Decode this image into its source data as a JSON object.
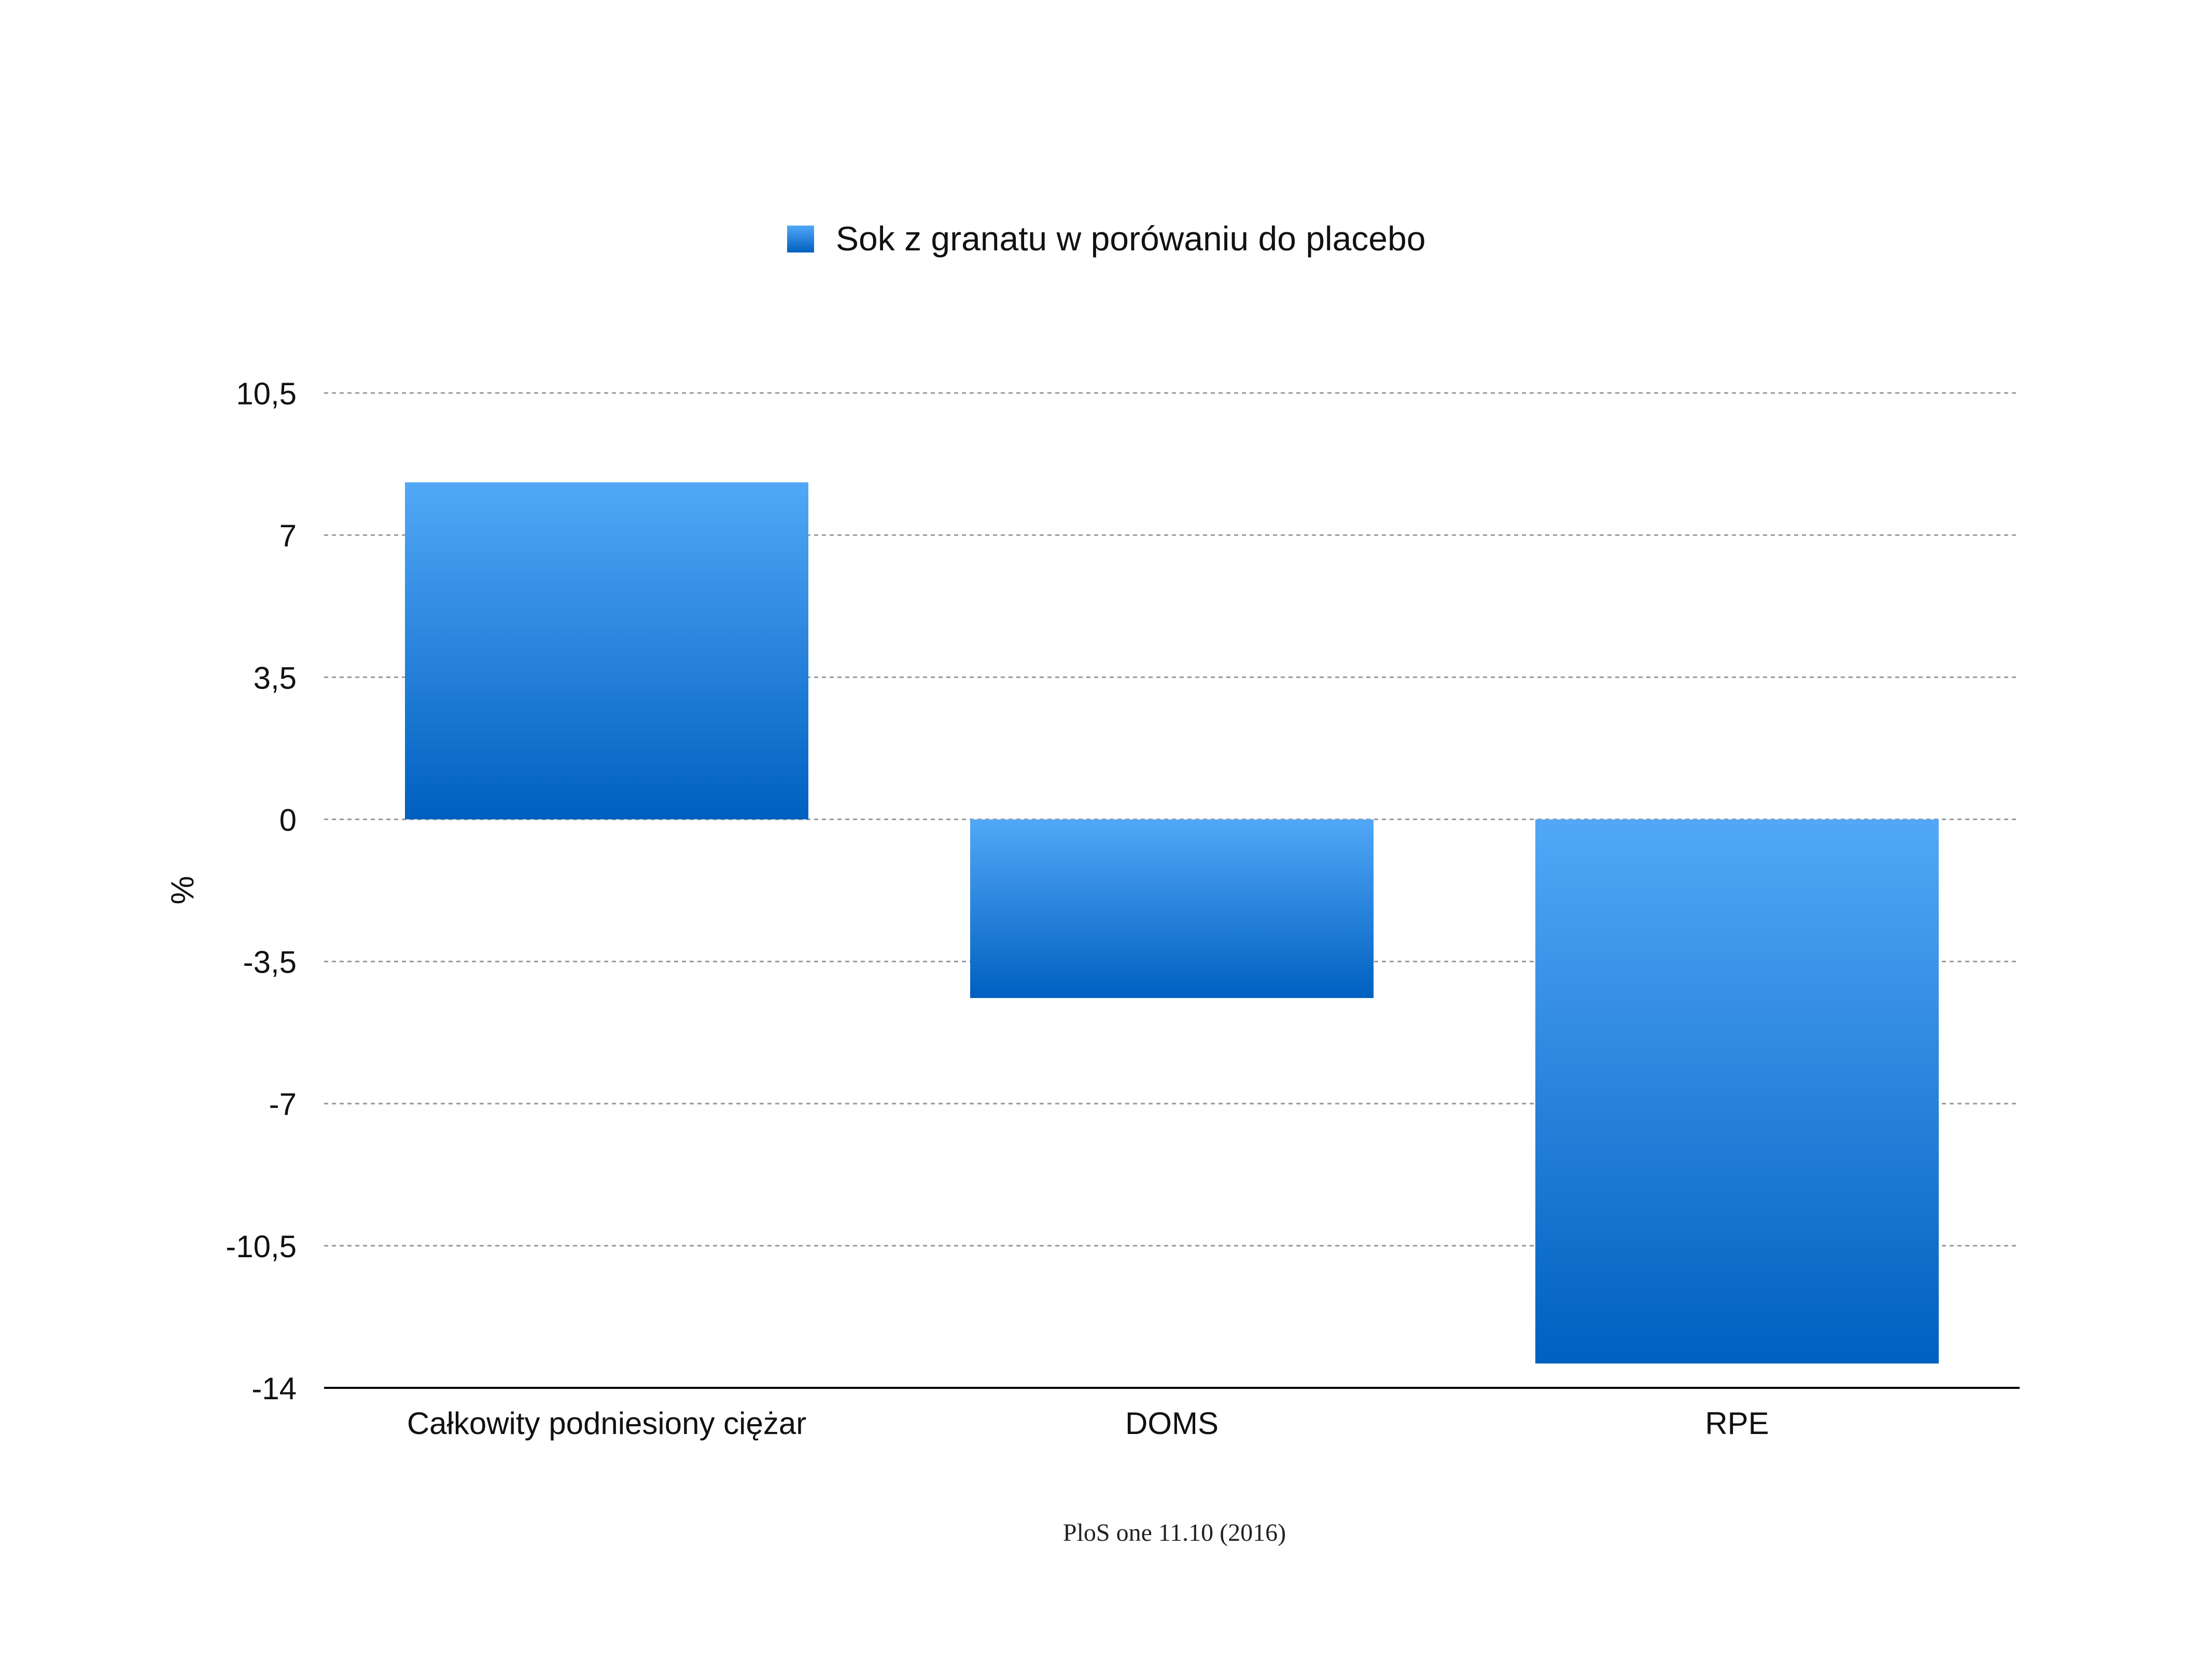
{
  "chart_data": {
    "type": "bar",
    "categories": [
      "Całkowity podniesiony ciężar",
      "DOMS",
      "RPE"
    ],
    "series": [
      {
        "name": "Sok z granatu w porówaniu do placebo",
        "values": [
          8.3,
          -4.4,
          -13.4
        ]
      }
    ],
    "ylabel": "%",
    "xlabel": "",
    "ylim": [
      -14,
      10.5
    ],
    "yticks": [
      10.5,
      7,
      3.5,
      0,
      -3.5,
      -7,
      -10.5,
      -14
    ],
    "ytick_labels": [
      "10,5",
      "7",
      "3,5",
      "0",
      "-3,5",
      "-7",
      "-10,5",
      "-14"
    ],
    "grid": true,
    "legend_position": "top-center",
    "source": "PloS one 11.10 (2016)",
    "colors": {
      "bar_top": "#52a8f7",
      "bar_bottom": "#0060c0",
      "grid": "#999999",
      "axis": "#000000"
    }
  }
}
